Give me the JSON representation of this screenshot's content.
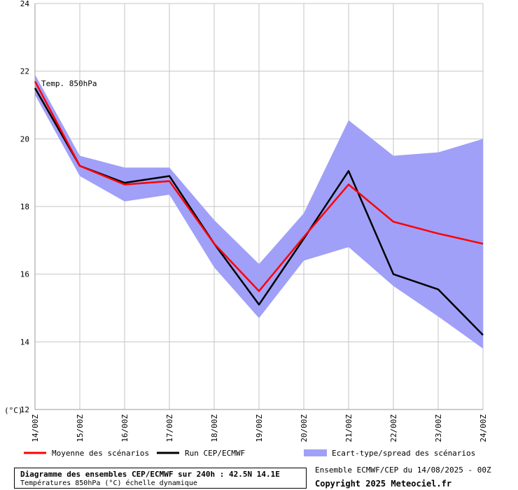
{
  "chart_data": {
    "type": "line",
    "series_label": "Temp. 850hPa",
    "y_unit_label": "(°C)",
    "ylim": [
      12,
      24
    ],
    "y_ticks": [
      12,
      14,
      16,
      18,
      20,
      22,
      24
    ],
    "categories": [
      "14/00Z",
      "15/00Z",
      "16/00Z",
      "17/00Z",
      "18/00Z",
      "19/00Z",
      "20/00Z",
      "21/00Z",
      "22/00Z",
      "23/00Z",
      "24/00Z"
    ],
    "grid": true,
    "series": [
      {
        "name": "Moyenne des scénarios",
        "color": "#ff0000",
        "values": [
          21.7,
          19.2,
          18.65,
          18.75,
          16.9,
          15.5,
          17.1,
          18.65,
          17.55,
          17.2,
          16.9
        ]
      },
      {
        "name": "Run CEP/ECMWF",
        "color": "#000000",
        "values": [
          21.5,
          19.2,
          18.7,
          18.9,
          16.9,
          15.1,
          17.05,
          19.05,
          16.0,
          15.55,
          14.2
        ]
      }
    ],
    "band": {
      "name": "Ecart-type/spread des scénarios",
      "color": "#a0a0f8",
      "upper": [
        21.9,
        19.5,
        19.15,
        19.15,
        17.6,
        16.3,
        17.8,
        20.55,
        19.5,
        19.6,
        20.0
      ],
      "lower": [
        21.3,
        18.9,
        18.15,
        18.35,
        16.2,
        14.7,
        16.4,
        16.8,
        15.65,
        14.75,
        13.8
      ]
    }
  },
  "footer": {
    "title": "Diagramme des ensembles CEP/ECMWF sur 240h : 42.5N 14.1E",
    "subtitle": "Températures 850hPa (°C) échelle dynamique",
    "ensemble_info": "Ensemble ECMWF/CEP du 14/08/2025 - 00Z",
    "copyright": "Copyright 2025 Meteociel.fr"
  }
}
